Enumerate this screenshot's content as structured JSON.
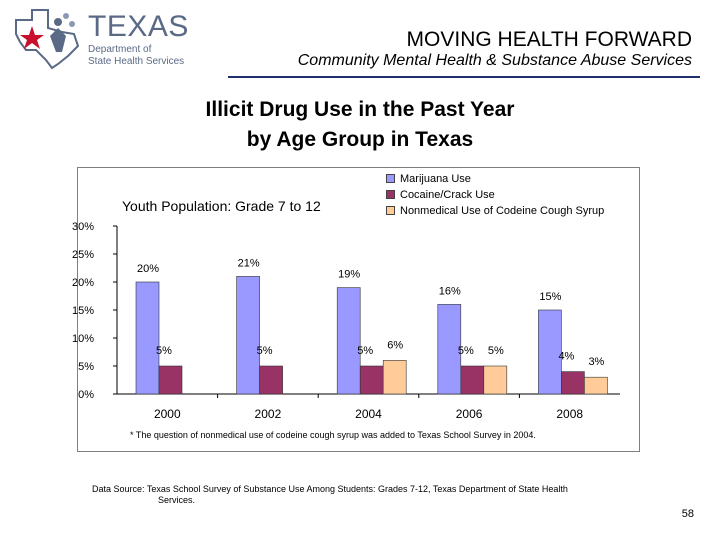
{
  "header": {
    "logo": {
      "word": "TEXAS",
      "line1": "Department of",
      "line2": "State Health Services"
    },
    "title": "MOVING HEALTH FORWARD",
    "subtitle": "Community Mental Health & Substance Abuse Services"
  },
  "slide_title": {
    "line1": "Illicit Drug Use in the Past Year",
    "line2": "by Age Group in Texas"
  },
  "colors": {
    "marijuana": "#9999ff",
    "cocaine": "#993366",
    "codeine": "#ffcc99",
    "header_rule": "#1f2f6e",
    "logo": "#5a6a86"
  },
  "chart_data": {
    "type": "bar",
    "title": "Youth Population: Grade 7 to 12",
    "categories": [
      "2000",
      "2002",
      "2004",
      "2006",
      "2008"
    ],
    "series": [
      {
        "name": "Marijuana Use",
        "values": [
          20,
          21,
          19,
          16,
          15
        ],
        "labels": [
          "20%",
          "21%",
          "19%",
          "16%",
          "15%"
        ]
      },
      {
        "name": "Cocaine/Crack Use",
        "values": [
          5,
          5,
          5,
          5,
          4
        ],
        "labels": [
          "5%",
          "5%",
          "5%",
          "5%",
          "4%"
        ]
      },
      {
        "name": "Nonmedical Use of Codeine Cough Syrup",
        "values": [
          null,
          null,
          6,
          5,
          3
        ],
        "labels": [
          "",
          "",
          "6%",
          "5%",
          "3%"
        ]
      }
    ],
    "y_ticks": [
      "0%",
      "5%",
      "10%",
      "15%",
      "20%",
      "25%",
      "30%"
    ],
    "ylim": [
      0,
      30
    ],
    "legend_position": "top-right",
    "grid": false
  },
  "footnote": "The question of nonmedical use of codeine cough syrup was added to Texas School Survey in 2004.",
  "source": {
    "line1": "Data Source: Texas School Survey of Substance Use Among Students: Grades 7-12, Texas Department of State Health",
    "line2": "Services."
  },
  "page_number": "58"
}
